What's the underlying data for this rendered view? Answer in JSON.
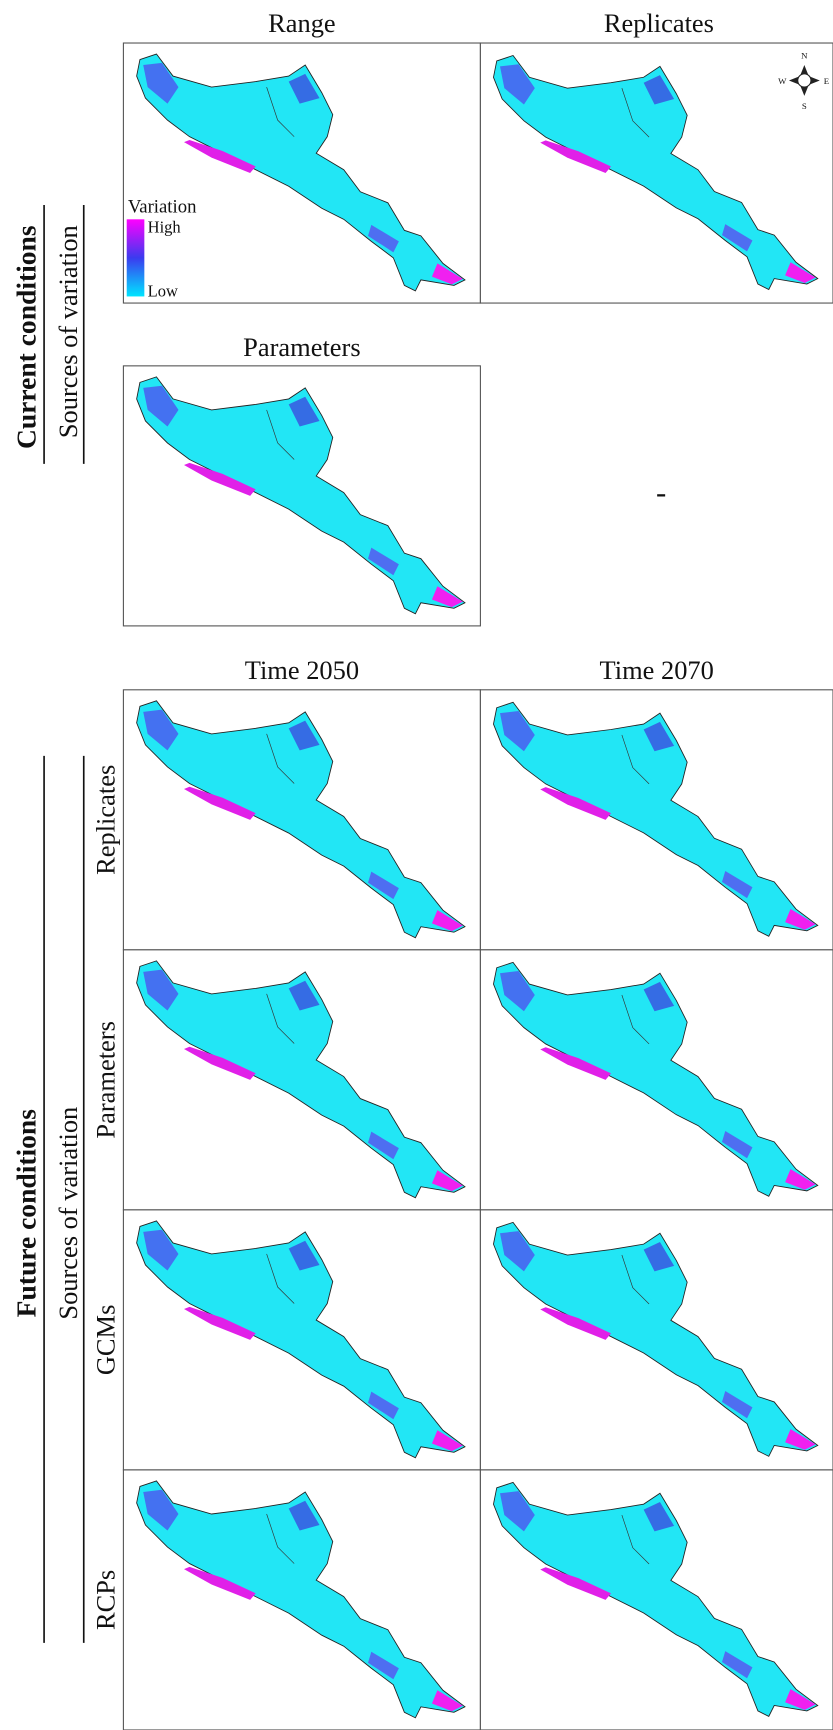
{
  "current": {
    "title": "Current conditions",
    "subtitle": "Sources of variation",
    "panels": [
      "Range",
      "Replicates",
      "Parameters"
    ],
    "empty_panel": "-"
  },
  "legend": {
    "title": "Variation",
    "high": "High",
    "low": "Low"
  },
  "compass": {
    "n": "N",
    "s": "S",
    "e": "E",
    "w": "W"
  },
  "future": {
    "title": "Future conditions",
    "subtitle": "Sources of variation",
    "columns": [
      "Time 2050",
      "Time 2070"
    ],
    "rows": [
      "Replicates",
      "Parameters",
      "GCMs",
      "RCPs"
    ]
  }
}
